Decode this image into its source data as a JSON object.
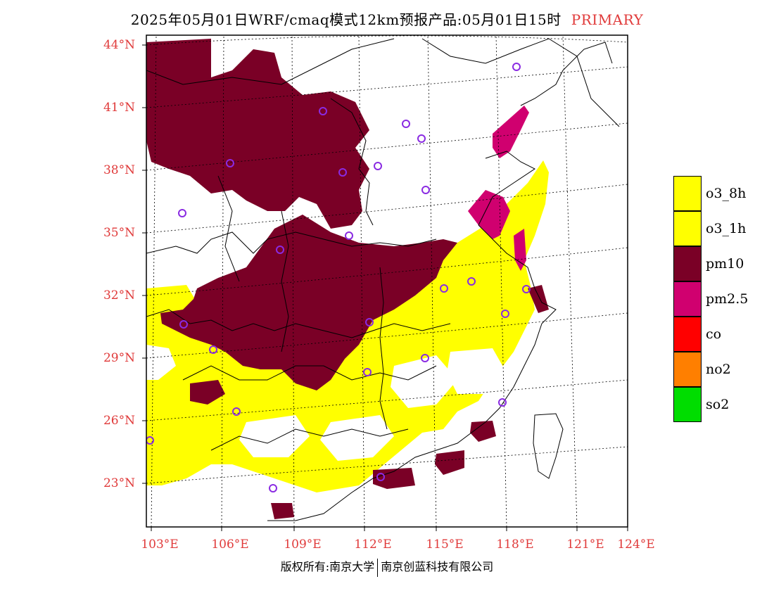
{
  "title": {
    "main": "2025年05月01日WRF/cmaq模式12km预报产品:05月01日15时",
    "tag": "PRIMARY"
  },
  "lat_labels": [
    "44°N",
    "41°N",
    "38°N",
    "35°N",
    "32°N",
    "29°N",
    "26°N",
    "23°N"
  ],
  "lon_labels": [
    "103°E",
    "106°E",
    "109°E",
    "112°E",
    "115°E",
    "118°E",
    "121°E",
    "124°E"
  ],
  "legend": [
    {
      "label": "o3_8h",
      "color": "#ffff00"
    },
    {
      "label": "o3_1h",
      "color": "#ffff00"
    },
    {
      "label": "pm10",
      "color": "#7a0026"
    },
    {
      "label": "pm2.5",
      "color": "#d0006f"
    },
    {
      "label": "co",
      "color": "#ff0000"
    },
    {
      "label": "no2",
      "color": "#ff7f00"
    },
    {
      "label": "so2",
      "color": "#00dd00"
    }
  ],
  "footer": {
    "left": "版权所有:南京大学",
    "right": "南京创蓝科技有限公司"
  },
  "colors": {
    "axis_label": "#e03a3a",
    "station_marker": "#8a2be2"
  }
}
